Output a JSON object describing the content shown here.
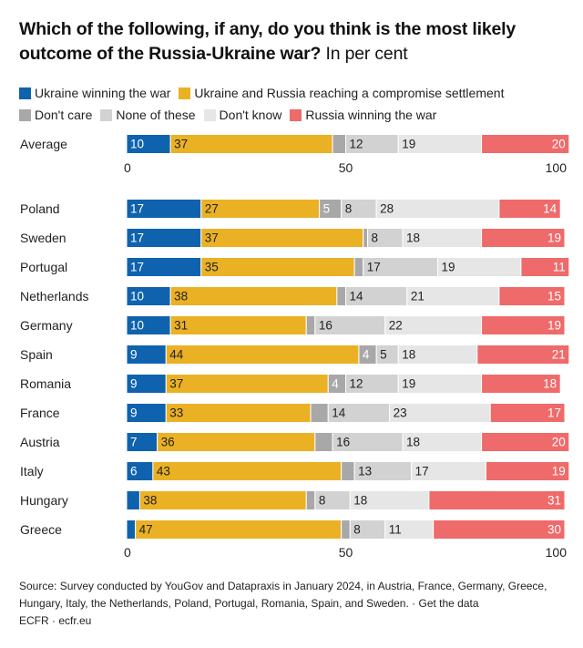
{
  "title_main": "Which of the following, if any, do you think is the most likely outcome of the Russia-Ukraine war?",
  "title_sub": "In per cent",
  "chart_data": {
    "type": "bar",
    "orientation": "horizontal",
    "stacked": true,
    "xlim": [
      0,
      100
    ],
    "xticks": [
      "0",
      "50",
      "100"
    ],
    "series": [
      {
        "name": "Ukraine winning the war",
        "color": "#0f62ad",
        "text_color": "#ffffff"
      },
      {
        "name": "Ukraine and Russia reaching a compromise settlement",
        "color": "#ebb124",
        "text_color": "#222222"
      },
      {
        "name": "Don't care",
        "color": "#a8a8a8",
        "text_color": "#ffffff"
      },
      {
        "name": "None of these",
        "color": "#d2d2d2",
        "text_color": "#222222"
      },
      {
        "name": "Don't know",
        "color": "#e6e6e6",
        "text_color": "#222222"
      },
      {
        "name": "Russia winning the war",
        "color": "#ef6a6a",
        "text_color": "#ffffff"
      }
    ],
    "summary": {
      "category": "Average",
      "values": [
        10,
        37,
        3,
        12,
        19,
        20
      ],
      "labels": [
        "10",
        "37",
        "",
        "12",
        "19",
        "20"
      ]
    },
    "categories": [
      "Poland",
      "Sweden",
      "Portugal",
      "Netherlands",
      "Germany",
      "Spain",
      "Romania",
      "France",
      "Austria",
      "Italy",
      "Hungary",
      "Greece"
    ],
    "rows": [
      {
        "values": [
          17,
          27,
          5,
          8,
          28,
          14
        ],
        "labels": [
          "17",
          "27",
          "5",
          "8",
          "28",
          "14"
        ]
      },
      {
        "values": [
          17,
          37,
          1,
          8,
          18,
          19
        ],
        "labels": [
          "17",
          "37",
          "",
          "8",
          "18",
          "19"
        ]
      },
      {
        "values": [
          17,
          35,
          2,
          17,
          19,
          11
        ],
        "labels": [
          "17",
          "35",
          "",
          "17",
          "19",
          "11"
        ]
      },
      {
        "values": [
          10,
          38,
          2,
          14,
          21,
          15
        ],
        "labels": [
          "10",
          "38",
          "",
          "14",
          "21",
          "15"
        ]
      },
      {
        "values": [
          10,
          31,
          2,
          16,
          22,
          19
        ],
        "labels": [
          "10",
          "31",
          "",
          "16",
          "22",
          "19"
        ]
      },
      {
        "values": [
          9,
          44,
          4,
          5,
          18,
          21
        ],
        "labels": [
          "9",
          "44",
          "4",
          "5",
          "18",
          "21"
        ]
      },
      {
        "values": [
          9,
          37,
          4,
          12,
          19,
          18
        ],
        "labels": [
          "9",
          "37",
          "4",
          "12",
          "19",
          "18"
        ]
      },
      {
        "values": [
          9,
          33,
          4,
          14,
          23,
          17
        ],
        "labels": [
          "9",
          "33",
          "",
          "14",
          "23",
          "17"
        ]
      },
      {
        "values": [
          7,
          36,
          4,
          16,
          18,
          20
        ],
        "labels": [
          "7",
          "36",
          "",
          "16",
          "18",
          "20"
        ]
      },
      {
        "values": [
          6,
          43,
          3,
          13,
          17,
          19
        ],
        "labels": [
          "6",
          "43",
          "",
          "13",
          "17",
          "19"
        ]
      },
      {
        "values": [
          3,
          38,
          2,
          8,
          18,
          31
        ],
        "labels": [
          "",
          "38",
          "",
          "8",
          "18",
          "31"
        ]
      },
      {
        "values": [
          2,
          47,
          2,
          8,
          11,
          30
        ],
        "labels": [
          "",
          "47",
          "",
          "8",
          "11",
          "30"
        ]
      }
    ]
  },
  "footer": {
    "source": "Source: Survey conducted by YouGov and Datapraxis in January 2024, in Austria, France, Germany, Greece, Hungary, Italy, the Netherlands, Poland, Portugal, Romania, Spain, and Sweden.",
    "separator": " · ",
    "get_data": "Get the data",
    "credit": "ECFR · ecfr.eu"
  }
}
